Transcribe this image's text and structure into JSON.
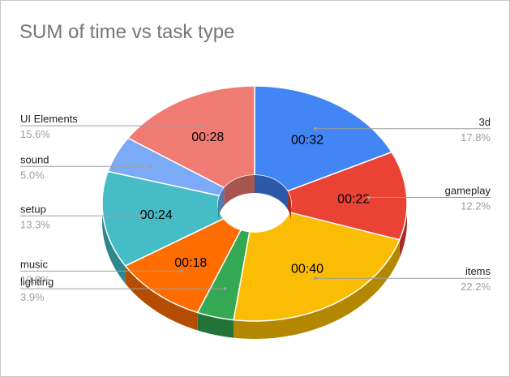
{
  "chart_data": {
    "type": "pie",
    "style": "3d-donut",
    "title": "SUM of time vs task type",
    "slices": [
      {
        "category": "3d",
        "value_label": "00:32",
        "percent": "17.8%",
        "seconds": 32,
        "color": "#4285f4",
        "side_color": "#2c5aa8"
      },
      {
        "category": "gameplay",
        "value_label": "00:22",
        "percent": "12.2%",
        "seconds": 22,
        "color": "#ea4335",
        "side_color": "#a32d24"
      },
      {
        "category": "items",
        "value_label": "00:40",
        "percent": "22.2%",
        "seconds": 40,
        "color": "#fbbc04",
        "side_color": "#b38800"
      },
      {
        "category": "lighting",
        "value_label": "",
        "percent": "3.9%",
        "seconds": 7,
        "color": "#34a853",
        "side_color": "#237339"
      },
      {
        "category": "music",
        "value_label": "00:18",
        "percent": "10.0%",
        "seconds": 18,
        "color": "#ff6d01",
        "side_color": "#b54c00"
      },
      {
        "category": "setup",
        "value_label": "00:24",
        "percent": "13.3%",
        "seconds": 24,
        "color": "#46bdc6",
        "side_color": "#2f868d"
      },
      {
        "category": "sound",
        "value_label": "",
        "percent": "5.0%",
        "seconds": 9,
        "color": "#7baaf7",
        "side_color": "#5378b3"
      },
      {
        "category": "UI Elements",
        "value_label": "00:28",
        "percent": "15.6%",
        "seconds": 28,
        "color": "#f07b72",
        "side_color": "#a9554f"
      }
    ],
    "legend": "labeled"
  }
}
